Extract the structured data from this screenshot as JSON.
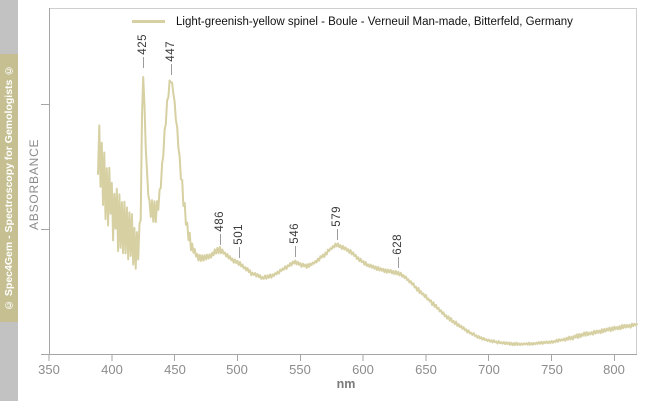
{
  "watermark": {
    "text": "© Spec4Gem - Spectroscopy for Gemologists ©"
  },
  "legend": {
    "label": "Light-greenish-yellow spinel - Boule - Verneuil Man-made, Bitterfeld, Germany"
  },
  "axes": {
    "x_label": "nm",
    "y_label": "ABSORBANCE",
    "x_ticks": [
      350,
      400,
      450,
      500,
      550,
      600,
      650,
      700,
      750,
      800
    ]
  },
  "colors": {
    "curve": "#d6d0a2",
    "strip_gray": "#c2c2c2",
    "strip_khaki": "#c5bf92",
    "axis": "#a6a6a6",
    "frame": "#cfcfcf",
    "tick_text": "#8c8c8c",
    "peak_text": "#3a3a3a"
  },
  "chart_data": {
    "type": "line",
    "title": "",
    "xlabel": "nm",
    "ylabel": "ABSORBANCE",
    "x_range": [
      350,
      818
    ],
    "y_range": [
      0,
      1
    ],
    "y_units": "relative absorbance (unlabeled axis)",
    "x_ticks": [
      350,
      400,
      450,
      500,
      550,
      600,
      650,
      700,
      750,
      800
    ],
    "legend_position": "top",
    "grid": false,
    "peak_annotations": [
      {
        "label": "425",
        "nm": 425
      },
      {
        "label": "447",
        "nm": 447
      },
      {
        "label": "486",
        "nm": 486
      },
      {
        "label": "501",
        "nm": 501
      },
      {
        "label": "546",
        "nm": 546
      },
      {
        "label": "579",
        "nm": 579
      },
      {
        "label": "628",
        "nm": 628
      }
    ],
    "series": [
      {
        "name": "Light-greenish-yellow spinel - Boule - Verneuil Man-made, Bitterfeld, Germany",
        "x_nm": [
          389,
          392,
          395,
          398,
          401,
          404,
          407,
          410,
          413,
          416,
          419,
          421,
          423,
          424,
          425,
          426,
          428,
          430,
          432,
          434,
          436,
          438,
          440,
          442,
          444,
          446,
          447,
          449,
          451,
          454,
          457,
          460,
          463,
          466,
          469,
          472,
          476,
          480,
          483,
          486,
          489,
          493,
          497,
          501,
          506,
          511,
          516,
          520,
          525,
          530,
          535,
          540,
          543,
          546,
          549,
          552,
          555,
          558,
          562,
          566,
          570,
          574,
          577,
          579,
          582,
          586,
          590,
          595,
          600,
          605,
          610,
          615,
          620,
          624,
          628,
          632,
          636,
          640,
          645,
          650,
          655,
          660,
          666,
          672,
          678,
          684,
          690,
          696,
          702,
          710,
          718,
          726,
          734,
          742,
          750,
          758,
          766,
          774,
          782,
          790,
          798,
          806,
          812,
          818
        ],
        "absorbance": [
          0.562,
          0.519,
          0.49,
          0.461,
          0.432,
          0.409,
          0.389,
          0.372,
          0.354,
          0.331,
          0.311,
          0.303,
          0.403,
          0.677,
          0.813,
          0.706,
          0.519,
          0.432,
          0.412,
          0.403,
          0.412,
          0.461,
          0.539,
          0.634,
          0.726,
          0.781,
          0.793,
          0.758,
          0.692,
          0.562,
          0.447,
          0.366,
          0.317,
          0.294,
          0.282,
          0.28,
          0.282,
          0.291,
          0.3,
          0.303,
          0.297,
          0.282,
          0.271,
          0.265,
          0.251,
          0.236,
          0.228,
          0.222,
          0.225,
          0.233,
          0.245,
          0.256,
          0.262,
          0.268,
          0.262,
          0.259,
          0.256,
          0.259,
          0.268,
          0.28,
          0.291,
          0.305,
          0.314,
          0.317,
          0.314,
          0.305,
          0.297,
          0.282,
          0.268,
          0.256,
          0.251,
          0.245,
          0.242,
          0.239,
          0.236,
          0.228,
          0.216,
          0.202,
          0.184,
          0.167,
          0.15,
          0.133,
          0.112,
          0.095,
          0.081,
          0.066,
          0.055,
          0.046,
          0.04,
          0.035,
          0.032,
          0.032,
          0.032,
          0.035,
          0.037,
          0.043,
          0.049,
          0.058,
          0.063,
          0.069,
          0.075,
          0.081,
          0.084,
          0.089
        ],
        "noise": [
          0.115,
          0.13,
          0.13,
          0.121,
          0.115,
          0.11,
          0.104,
          0.098,
          0.086,
          0.075,
          0.063,
          0.052,
          0.029,
          0.017,
          0.012,
          0.014,
          0.023,
          0.029,
          0.04,
          0.046,
          0.046,
          0.035,
          0.029,
          0.023,
          0.017,
          0.012,
          0.009,
          0.012,
          0.017,
          0.023,
          0.023,
          0.023,
          0.017,
          0.014,
          0.012,
          0.009,
          0.009,
          0.009,
          0.009,
          0.009,
          0.006,
          0.006,
          0.006,
          0.006,
          0.006,
          0.006,
          0.006,
          0.006,
          0.006,
          0.006,
          0.006,
          0.006,
          0.006,
          0.006,
          0.006,
          0.006,
          0.006,
          0.006,
          0.006,
          0.006,
          0.006,
          0.006,
          0.006,
          0.006,
          0.006,
          0.006,
          0.006,
          0.006,
          0.006,
          0.006,
          0.006,
          0.006,
          0.006,
          0.006,
          0.006,
          0.006,
          0.006,
          0.006,
          0.006,
          0.006,
          0.006,
          0.006,
          0.006,
          0.006,
          0.006,
          0.006,
          0.004,
          0.004,
          0.004,
          0.004,
          0.004,
          0.004,
          0.004,
          0.004,
          0.004,
          0.004,
          0.006,
          0.006,
          0.006,
          0.006,
          0.006,
          0.006,
          0.006,
          0.006
        ]
      }
    ]
  }
}
